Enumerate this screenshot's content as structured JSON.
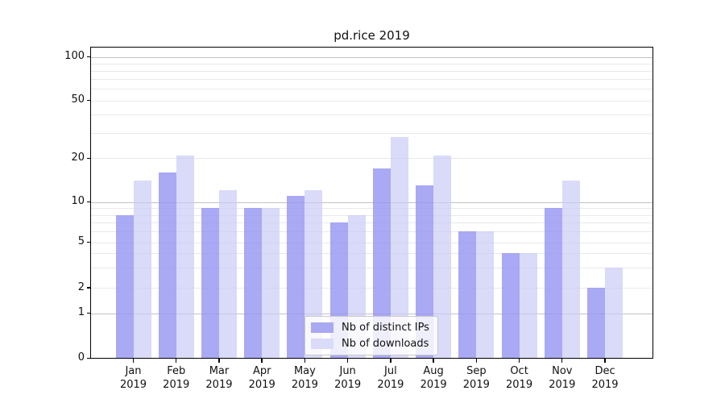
{
  "title": "pd.rice 2019",
  "chart_data": {
    "type": "bar",
    "title": "pd.rice 2019",
    "xlabel": "",
    "ylabel": "",
    "categories": [
      "Jan",
      "Feb",
      "Mar",
      "Apr",
      "May",
      "Jun",
      "Jul",
      "Aug",
      "Sep",
      "Oct",
      "Nov",
      "Dec"
    ],
    "category_year": "2019",
    "series": [
      {
        "name": "Nb of distinct IPs",
        "color": "#a9a9f2",
        "values": [
          8,
          16,
          9,
          9,
          11,
          7,
          17,
          13,
          6,
          4,
          9,
          2
        ]
      },
      {
        "name": "Nb of downloads",
        "color": "#dadaf9",
        "values": [
          14,
          21,
          12,
          9,
          12,
          8,
          28,
          21,
          6,
          4,
          14,
          3
        ]
      }
    ],
    "yscale": "symlog",
    "ylim": [
      0,
      100
    ],
    "ytick_labels": [
      "0",
      "1",
      "2",
      "5",
      "10",
      "20",
      "50",
      "100"
    ],
    "ytick_values": [
      0,
      1,
      2,
      5,
      10,
      20,
      50,
      100
    ],
    "major_gridline_values": [
      1,
      10,
      100
    ],
    "minor_gridline_values": [
      2,
      3,
      4,
      5,
      6,
      7,
      8,
      9,
      20,
      30,
      40,
      50,
      60,
      70,
      80,
      90
    ],
    "grid": true,
    "legend_position": "lower-center"
  },
  "colors": {
    "bar_ips": "#a9a9f2",
    "bar_downloads": "#dadaf9",
    "grid_major": "#c3c3c3",
    "grid_minor": "#e9e9ec",
    "spine": "#000000",
    "background": "#ffffff"
  }
}
